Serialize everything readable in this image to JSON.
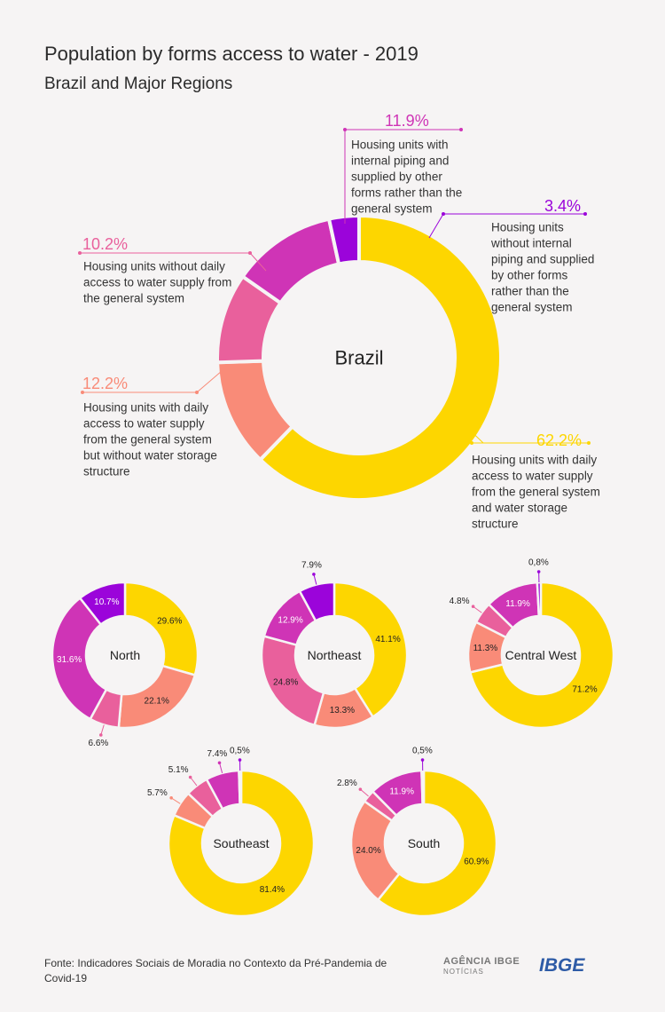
{
  "title": "Population by forms access to water - 2019",
  "subtitle": "Brazil and Major Regions",
  "footer": "Fonte: Indicadores Sociais de Moradia no Contexto da Pré-Pandemia de Covid-19",
  "logos": {
    "agencia_line1": "AGÊNCIA IBGE",
    "agencia_line2": "NOTÍCIAS",
    "ibge": "IBGE"
  },
  "colors": {
    "daily_with_storage": "#fdd600",
    "daily_without_storage": "#f98b78",
    "without_daily": "#e9609c",
    "internal_other": "#cf34b6",
    "no_internal_other": "#9b04da",
    "background": "#f6f4f4"
  },
  "chart_data": [
    {
      "type": "pie",
      "region": "Brazil",
      "categories": [
        "Housing units with daily access to water supply from the general system and water storage structure",
        "Housing units with daily access to water supply from the general system but without water storage structure",
        "Housing units without daily access to water supply from the general system",
        "Housing units with internal piping and supplied by other forms rather than the general system",
        "Housing units without internal piping and supplied by other forms rather than the general system"
      ],
      "values": [
        62.2,
        12.2,
        10.2,
        11.9,
        3.4
      ],
      "labels": [
        "62.2%",
        "12.2%",
        "10.2%",
        "11.9%",
        "3.4%"
      ]
    },
    {
      "type": "pie",
      "region": "North",
      "values": [
        29.6,
        22.1,
        6.6,
        31.6,
        10.7
      ],
      "labels": [
        "29.6%",
        "22.1%",
        "6.6%",
        "31.6%",
        "10.7%"
      ]
    },
    {
      "type": "pie",
      "region": "Northeast",
      "values": [
        41.1,
        13.3,
        24.8,
        12.9,
        7.9
      ],
      "labels": [
        "41.1%",
        "13.3%",
        "24.8%",
        "12.9%",
        "7.9%"
      ]
    },
    {
      "type": "pie",
      "region": "Central West",
      "values": [
        71.2,
        11.3,
        4.8,
        11.9,
        0.8
      ],
      "labels": [
        "71.2%",
        "11.3%",
        "4.8%",
        "11.9%",
        "0,8%"
      ]
    },
    {
      "type": "pie",
      "region": "Southeast",
      "values": [
        81.4,
        5.7,
        5.1,
        7.4,
        0.5
      ],
      "labels": [
        "81.4%",
        "5.7%",
        "5.1%",
        "7.4%",
        "0,5%"
      ]
    },
    {
      "type": "pie",
      "region": "South",
      "values": [
        60.9,
        24.0,
        2.8,
        11.9,
        0.5
      ],
      "labels": [
        "60.9%",
        "24.0%",
        "2.8%",
        "11.9%",
        "0,5%"
      ]
    }
  ]
}
